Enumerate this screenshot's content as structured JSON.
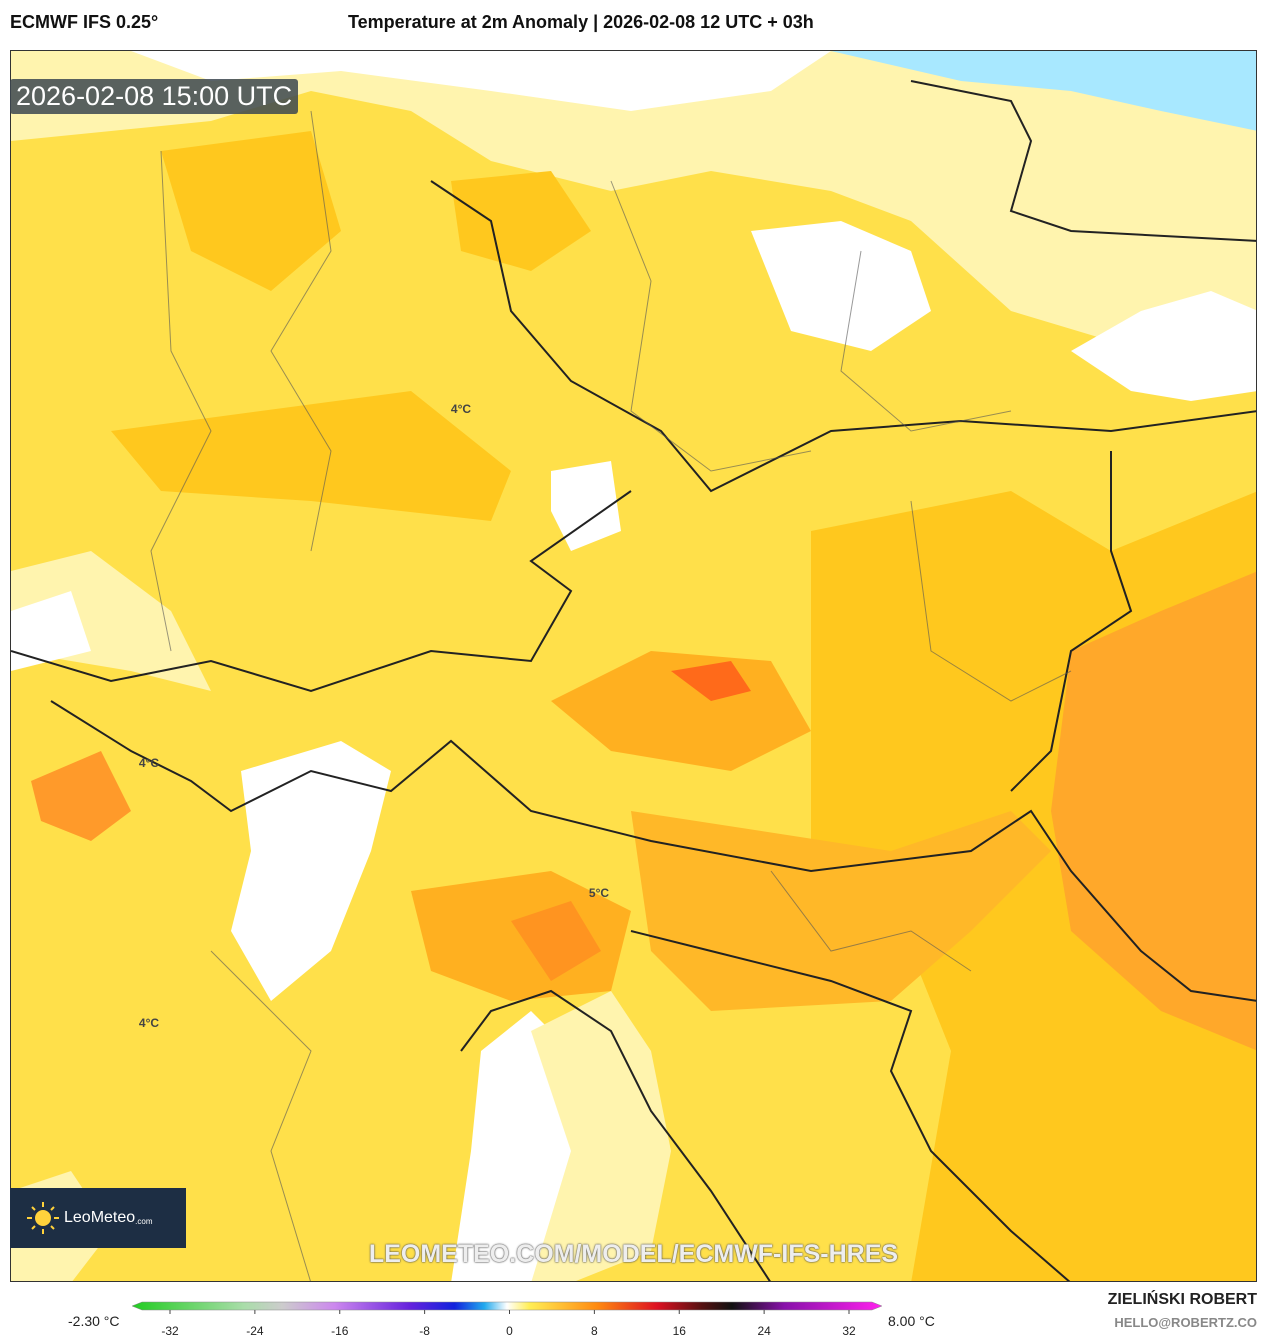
{
  "header": {
    "model": "ECMWF IFS 0.25°",
    "title": "Temperature at 2m Anomaly | 2026-02-08 12 UTC + 03h"
  },
  "map": {
    "valid_time": "2026-02-08 15:00 UTC",
    "contour_labels": [
      "4°C",
      "4°C",
      "5°C",
      "4°C"
    ],
    "logo": {
      "name": "LeoMeteo",
      "suffix": ".com"
    },
    "url": "LEOMETEO.COM/MODEL/ECMWF-IFS-HRES"
  },
  "colorbar": {
    "min_label": "-2.30 °C",
    "max_label": "8.00 °C",
    "ticks": [
      -32,
      -24,
      -16,
      -8,
      0,
      8,
      16,
      24,
      32
    ]
  },
  "footer": {
    "author": "ZIELIŃSKI ROBERT",
    "email": "HELLO@ROBERTZ.CO"
  }
}
